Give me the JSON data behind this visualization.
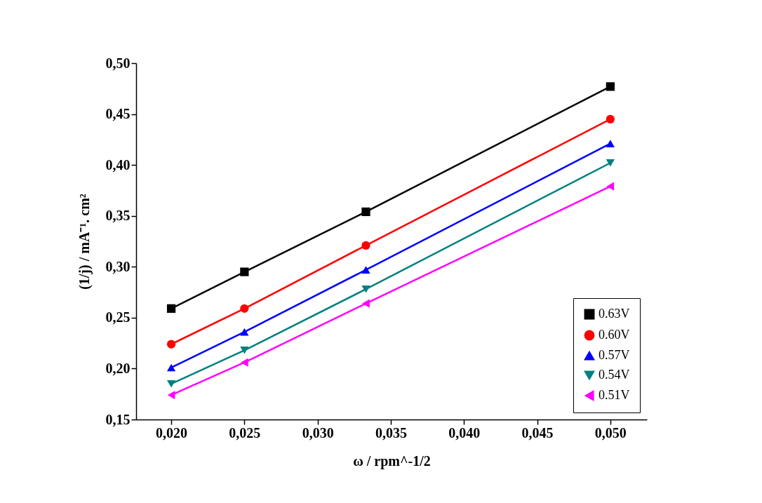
{
  "chart_data": {
    "type": "line",
    "xlabel": "ω / rpm^-1/2",
    "ylabel": "(1/j) / mA⁻¹. cm²",
    "x": [
      0.02,
      0.025,
      0.0333,
      0.05
    ],
    "series": [
      {
        "name": "0.63V",
        "color": "#000000",
        "marker": "square",
        "values": [
          0.259,
          0.295,
          0.354,
          0.477
        ]
      },
      {
        "name": "0.60V",
        "color": "#ff0000",
        "marker": "circle",
        "values": [
          0.224,
          0.259,
          0.321,
          0.445
        ]
      },
      {
        "name": "0.57V",
        "color": "#0000ff",
        "marker": "triangle",
        "values": [
          0.201,
          0.236,
          0.297,
          0.421
        ]
      },
      {
        "name": "0.54V",
        "color": "#008080",
        "marker": "triangle-down",
        "values": [
          0.185,
          0.218,
          0.278,
          0.402
        ]
      },
      {
        "name": "0.51V",
        "color": "#ff00ff",
        "marker": "triangle-left",
        "values": [
          0.174,
          0.206,
          0.264,
          0.379
        ]
      }
    ],
    "xlim": [
      0.0176,
      0.0525
    ],
    "xticks": [
      {
        "value": 0.02,
        "label": "0,020"
      },
      {
        "value": 0.025,
        "label": "0,025"
      },
      {
        "value": 0.03,
        "label": "0,030"
      },
      {
        "value": 0.035,
        "label": "0,035"
      },
      {
        "value": 0.04,
        "label": "0,040"
      },
      {
        "value": 0.045,
        "label": "0,045"
      },
      {
        "value": 0.05,
        "label": "0,050"
      }
    ],
    "ylim": [
      0.15,
      0.5
    ],
    "yticks": [
      {
        "value": 0.15,
        "label": "0,15"
      },
      {
        "value": 0.2,
        "label": "0,20"
      },
      {
        "value": 0.25,
        "label": "0,25"
      },
      {
        "value": 0.3,
        "label": "0,30"
      },
      {
        "value": 0.35,
        "label": "0,35"
      },
      {
        "value": 0.4,
        "label": "0,40"
      },
      {
        "value": 0.45,
        "label": "0,45"
      },
      {
        "value": 0.5,
        "label": "0,50"
      }
    ],
    "grid": false,
    "legend": "bottom right",
    "line_style": "solid"
  }
}
